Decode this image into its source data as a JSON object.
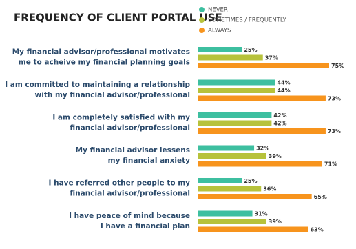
{
  "chart_data": {
    "type": "hbar",
    "title": "FREQUENCY OF CLIENT PORTAL USE",
    "categories": [
      [
        "My financial advisor/professional motivates",
        "me to acheive my financial planning goals"
      ],
      [
        "I am committed to maintaining a relationship",
        "with my financial advisor/professional"
      ],
      [
        "I am completely satisfied with my",
        "financial advisor/professional"
      ],
      [
        "My financial advisor lessens",
        "my financial anxiety"
      ],
      [
        "I have referred other people to my",
        "financial advisor/professional"
      ],
      [
        "I have peace of mind because",
        "I have a financial plan"
      ]
    ],
    "series": [
      {
        "name": "NEVER",
        "color": "#3dbfa0",
        "values": [
          25,
          44,
          42,
          32,
          25,
          31
        ],
        "value_labels": [
          "25%",
          "44%",
          "42%",
          "32%",
          "25%",
          "31%"
        ]
      },
      {
        "name": "SOMETIMES / FREQUENTLY",
        "color": "#b7c23b",
        "values": [
          37,
          44,
          42,
          39,
          36,
          39
        ],
        "value_labels": [
          "37%",
          "44%",
          "42%",
          "39%",
          "36%",
          "39%"
        ]
      },
      {
        "name": "ALWAYS",
        "color": "#f7941d",
        "values": [
          75,
          73,
          73,
          71,
          65,
          63
        ],
        "value_labels": [
          "75%",
          "73%",
          "73%",
          "71%",
          "65%",
          "63%"
        ]
      }
    ]
  }
}
